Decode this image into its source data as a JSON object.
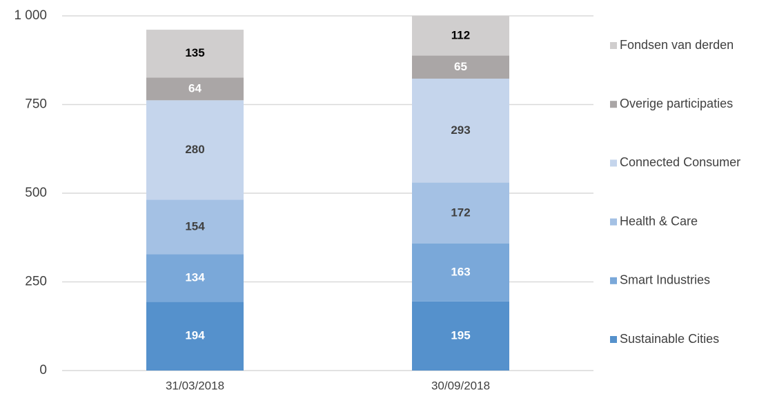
{
  "chart_data": {
    "type": "stacked_bar",
    "categories": [
      "31/03/2018",
      "30/09/2018"
    ],
    "series": [
      {
        "name": "Sustainable Cities",
        "color": "#5591cc",
        "label_color": "#ffffff",
        "values": [
          194,
          195
        ]
      },
      {
        "name": "Smart Industries",
        "color": "#7aa8d9",
        "label_color": "#ffffff",
        "values": [
          134,
          163
        ]
      },
      {
        "name": "Health & Care",
        "color": "#a4c1e4",
        "label_color": "#404040",
        "values": [
          154,
          172
        ]
      },
      {
        "name": "Connected Consumer",
        "color": "#c5d5ec",
        "label_color": "#404040",
        "values": [
          280,
          293
        ]
      },
      {
        "name": "Overige participaties",
        "color": "#aaa6a6",
        "label_color": "#ffffff",
        "values": [
          64,
          65
        ]
      },
      {
        "name": "Fondsen van derden",
        "color": "#d0cece",
        "label_color": "#000000",
        "values": [
          135,
          112
        ]
      }
    ],
    "ylim": [
      0,
      1000
    ],
    "yticks": [
      0,
      250,
      500,
      750,
      {
        "value": 1000,
        "label": "1 000"
      }
    ],
    "grid": true,
    "legend": "right"
  }
}
